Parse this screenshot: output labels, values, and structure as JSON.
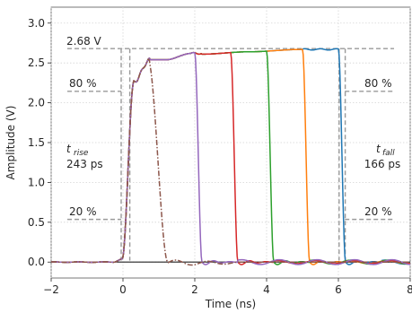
{
  "chart_data": {
    "type": "line",
    "xlabel": "Time (ns)",
    "ylabel": "Amplitude (V)",
    "xlim": [
      -2,
      8
    ],
    "ylim": [
      -0.2,
      3.2
    ],
    "xticks": [
      -2,
      0,
      2,
      4,
      6,
      8
    ],
    "xtick_labels": [
      "−2",
      "0",
      "2",
      "4",
      "6",
      "8"
    ],
    "yticks": [
      0.0,
      0.5,
      1.0,
      1.5,
      2.0,
      2.5,
      3.0
    ],
    "ytick_labels": [
      "0.0",
      "0.5",
      "1.0",
      "1.5",
      "2.0",
      "2.5",
      "3.0"
    ],
    "grid": true,
    "baseline_y": 0.0,
    "series": [
      {
        "color": "#1f77b4",
        "style": "solid",
        "fall_ns": 6.0
      },
      {
        "color": "#ff7f0e",
        "style": "solid",
        "fall_ns": 5.0
      },
      {
        "color": "#2ca02c",
        "style": "solid",
        "fall_ns": 4.0
      },
      {
        "color": "#d62728",
        "style": "solid",
        "fall_ns": 3.0
      },
      {
        "color": "#9467bd",
        "style": "solid",
        "fall_ns": 2.0
      },
      {
        "color": "#8c564b",
        "style": "dashdot",
        "fall_ns": 0.7
      }
    ],
    "reference_levels": [
      {
        "label": "2.68 V",
        "y": 2.68
      },
      {
        "label": "80 %",
        "y": 2.144
      },
      {
        "label": "20 %",
        "y": 0.536
      }
    ],
    "annotations": {
      "t_rise_symbol": "t",
      "t_rise_sub": "rise",
      "t_rise_value": "243 ps",
      "t_fall_symbol": "t",
      "t_fall_sub": "fall",
      "t_fall_value": "166 ps",
      "right_80": "80 %",
      "right_20": "20 %"
    },
    "rise_markers_ns": [
      -0.05,
      0.19
    ],
    "fall_markers_ns": [
      6.02,
      6.19
    ]
  }
}
